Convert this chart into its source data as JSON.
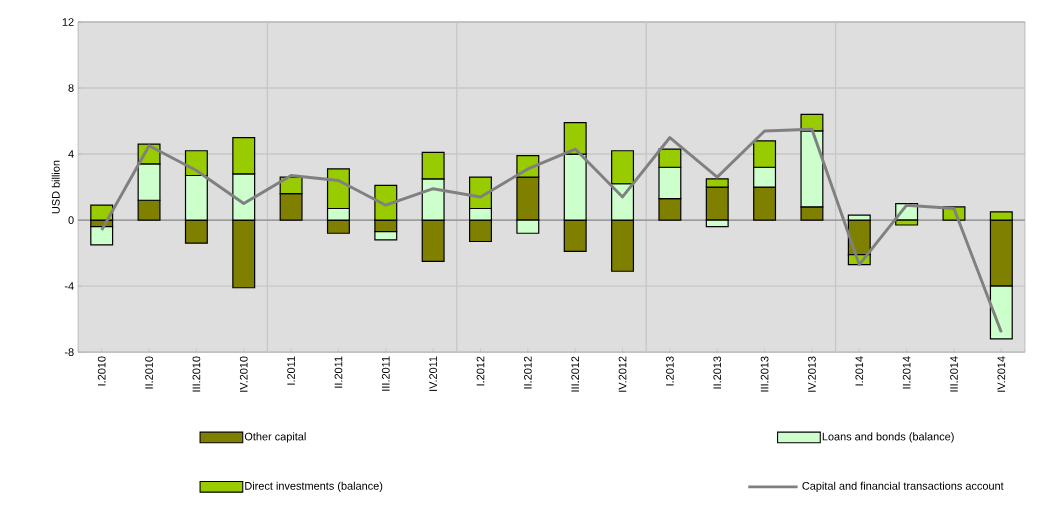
{
  "chart_data": {
    "type": "bar",
    "stacked": true,
    "ylabel": "USD billion",
    "categories": [
      "I.2010",
      "II.2010",
      "III.2010",
      "IV.2010",
      "I.2011",
      "II.2011",
      "III.2011",
      "IV.2011",
      "I.2012",
      "II.2012",
      "III.2012",
      "IV.2012",
      "I.2013",
      "II.2013",
      "III.2013",
      "IV.2013",
      "I.2014",
      "II.2014",
      "III.2014",
      "IV.2014"
    ],
    "series": [
      {
        "name": "Other capital",
        "color": "#808000",
        "values": [
          -0.4,
          1.2,
          -1.4,
          -4.1,
          1.6,
          -0.8,
          -0.7,
          -2.5,
          -1.3,
          2.6,
          -1.9,
          -3.1,
          1.3,
          2.0,
          2.0,
          0.8,
          -2.1,
          0,
          0,
          -4.0
        ]
      },
      {
        "name": "Loans and bonds (balance)",
        "color": "#ccffcc",
        "values": [
          -1.1,
          2.2,
          2.7,
          2.8,
          0,
          0.7,
          -0.5,
          2.5,
          0.7,
          -0.8,
          4.0,
          2.2,
          1.9,
          -0.4,
          1.2,
          4.6,
          0.3,
          1.0,
          0,
          -3.2
        ]
      },
      {
        "name": "Direct investments (balance)",
        "color": "#99cc00",
        "values": [
          0.9,
          1.2,
          1.5,
          2.2,
          1.0,
          2.4,
          2.1,
          1.6,
          1.9,
          1.3,
          1.9,
          2.0,
          1.1,
          0.5,
          1.6,
          1.0,
          -0.6,
          -0.3,
          0.8,
          0.5
        ]
      },
      {
        "name": "Capital and financial transactions account",
        "type": "line",
        "color": "#808080",
        "values": [
          -0.6,
          4.5,
          3.0,
          1.0,
          2.7,
          2.4,
          0.9,
          1.9,
          1.4,
          3.1,
          4.3,
          1.4,
          5.0,
          2.6,
          5.4,
          5.5,
          -2.7,
          0.9,
          0.7,
          -6.8
        ]
      }
    ],
    "ylim": [
      -8,
      12
    ],
    "yticks": [
      -8,
      -4,
      0,
      4,
      8,
      12
    ],
    "grid": "y",
    "legend": "bottom"
  }
}
